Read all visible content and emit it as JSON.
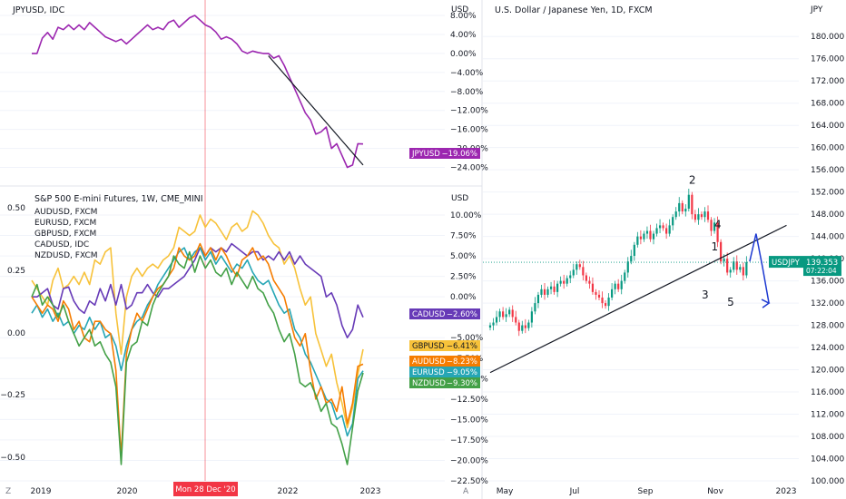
{
  "colors": {
    "jpy": "#9c27b0",
    "cad": "#673ab7",
    "gbp": "#f7c23a",
    "aud": "#f57c00",
    "eur": "#26a6b5",
    "nzd": "#43a047",
    "usdjpy_up": "#089981",
    "usdjpy_down": "#f23645",
    "crosshair": "#f23645",
    "arrow": "#1e3ad1",
    "badge_usdjpy": "#089981",
    "grid": "#f0f3fa"
  },
  "icons": {
    "left_corner": "tradingview-z-icon",
    "right_corner": "tradingview-a-icon"
  },
  "corner_left": "Z",
  "corner_right": "A",
  "crosshair_label": "Mon 28 Dec '20",
  "chart_data": [
    {
      "id": "jpyusd",
      "type": "line",
      "title": "JPYUSD, IDC",
      "unit_label": "USD",
      "y_ticks": [
        "8.00%",
        "4.00%",
        "0.00%",
        "−4.00%",
        "−8.00%",
        "−12.00%",
        "−16.00%",
        "−20.00%",
        "−24.00%"
      ],
      "ylim": [
        -26,
        8
      ],
      "series": [
        {
          "name": "JPYUSD",
          "last": "−19.06%",
          "values": [
            0,
            0,
            3.2,
            4.4,
            3.0,
            5.5,
            5.0,
            6.0,
            5.0,
            6.0,
            5.0,
            6.5,
            5.5,
            4.5,
            3.5,
            3.0,
            2.5,
            3.0,
            2.0,
            3.0,
            4.0,
            5.0,
            6.0,
            5.0,
            5.5,
            5.0,
            6.5,
            7.0,
            5.5,
            6.5,
            7.5,
            8.0,
            7.0,
            6.0,
            5.5,
            4.5,
            3.0,
            3.5,
            3.0,
            2.0,
            0.5,
            0,
            0.5,
            0.2,
            0,
            0,
            -1.0,
            -0.5,
            -2.5,
            -5.0,
            -7.5,
            -10.0,
            -12.5,
            -14.0,
            -17.0,
            -16.5,
            -15.5,
            -20.0,
            -19.0,
            -21.5,
            -24.0,
            -23.5,
            -19.0,
            -19.06
          ]
        }
      ],
      "trendline": {
        "from": [
          45,
          -0.5
        ],
        "to": [
          63,
          -23.5
        ]
      }
    },
    {
      "id": "fx-basket",
      "type": "line",
      "title": "S&P 500 E-mini Futures, 1W, CME_MINI",
      "unit_label": "USD",
      "x_ticks": [
        "2019",
        "2020",
        "2022",
        "2023"
      ],
      "left_y_ticks": [
        "0.50",
        "0.25",
        "0.00",
        "−0.25",
        "−0.50"
      ],
      "right_y_ticks": [
        "10.00%",
        "7.50%",
        "5.00%",
        "2.50%",
        "0.00%",
        "−5.00%",
        "−7.50%",
        "−10.00%",
        "−12.50%",
        "−15.00%",
        "−17.50%",
        "−20.00%",
        "−22.50%"
      ],
      "ylim": [
        -22.5,
        11
      ],
      "legend": [
        "AUDUSD, FXCM",
        "EURUSD, FXCM",
        "GBPUSD, FXCM",
        "CADUSD, IDC",
        "NZDUSD, FXCM"
      ],
      "series": [
        {
          "name": "CADUSD",
          "last": "−2.60%",
          "values": [
            0,
            0,
            0.5,
            1.0,
            -1.0,
            -1.5,
            1.0,
            1.2,
            -0.5,
            -1.5,
            -2.0,
            -0.5,
            -1.0,
            1.0,
            -0.5,
            1.5,
            -1.0,
            1.5,
            -1.5,
            -1.0,
            0.5,
            0.5,
            1.5,
            0.5,
            0,
            1.0,
            1.0,
            1.5,
            2.0,
            2.5,
            3.5,
            4.5,
            6.0,
            5.0,
            6.0,
            5.5,
            6.0,
            5.5,
            6.5,
            6.0,
            5.5,
            5.0,
            5.5,
            5.5,
            4.5,
            5.0,
            4.5,
            5.5,
            4.5,
            5.5,
            4.0,
            5.0,
            4.0,
            3.5,
            3.0,
            2.5,
            0,
            0.5,
            -1.0,
            -3.5,
            -5.0,
            -4.0,
            -1.0,
            -2.5
          ]
        },
        {
          "name": "GBPUSD",
          "last": "−6.41%",
          "values": [
            2.0,
            1.0,
            0,
            -1.0,
            2.0,
            3.5,
            1.0,
            1.5,
            2.5,
            1.5,
            3.0,
            1.5,
            4.5,
            4.0,
            5.5,
            6.0,
            -2.0,
            -7.0,
            0,
            2.5,
            3.5,
            2.5,
            3.5,
            4.0,
            3.5,
            4.5,
            5.0,
            6.0,
            8.5,
            8.0,
            7.5,
            8.0,
            10.0,
            8.5,
            9.5,
            9.0,
            8.0,
            7.0,
            8.5,
            9.0,
            8.0,
            8.5,
            10.5,
            10.0,
            9.0,
            7.5,
            6.5,
            6.0,
            4.0,
            5.0,
            3.5,
            1.0,
            -1.0,
            0,
            -4.5,
            -6.5,
            -8.5,
            -7.0,
            -10.5,
            -13.0,
            -16.0,
            -13.5,
            -9.5,
            -6.41
          ]
        },
        {
          "name": "AUDUSD",
          "last": "−8.23%",
          "values": [
            0,
            -1.0,
            -2.0,
            -1.0,
            -1.5,
            -3.0,
            -0.5,
            -1.5,
            -4.0,
            -3.0,
            -5.0,
            -5.5,
            -3.0,
            -3.0,
            -4.0,
            -4.5,
            -9.0,
            -19.5,
            -7.0,
            -4.0,
            -2.0,
            -3.0,
            -1.5,
            0,
            1.0,
            1.5,
            2.5,
            3.5,
            6.0,
            5.0,
            4.5,
            5.0,
            6.5,
            5.0,
            6.0,
            4.5,
            6.0,
            5.0,
            3.5,
            2.5,
            4.5,
            5.0,
            6.0,
            4.5,
            5.0,
            4.0,
            2.0,
            1.0,
            0,
            -2.5,
            -5.0,
            -6.0,
            -4.5,
            -9.0,
            -12.5,
            -11.0,
            -13.0,
            -12.5,
            -14.0,
            -11.0,
            -15.5,
            -13.0,
            -8.5,
            -8.23
          ]
        },
        {
          "name": "EURUSD",
          "last": "−9.05%",
          "values": [
            -2.0,
            -1.0,
            -2.5,
            -1.5,
            -3.0,
            -2.0,
            -3.5,
            -3.0,
            -4.5,
            -3.5,
            -4.0,
            -2.5,
            -4.0,
            -3.0,
            -5.0,
            -4.5,
            -6.0,
            -9.0,
            -6.0,
            -4.0,
            -3.0,
            -2.5,
            -1.0,
            0,
            1.5,
            2.5,
            3.5,
            4.5,
            5.5,
            6.0,
            4.5,
            5.5,
            6.0,
            4.5,
            5.5,
            4.0,
            5.0,
            4.0,
            3.0,
            4.0,
            3.5,
            4.5,
            3.0,
            2.0,
            1.5,
            2.0,
            0.5,
            -1.0,
            -2.0,
            -1.5,
            -4.0,
            -5.0,
            -7.0,
            -8.0,
            -9.5,
            -11.0,
            -12.5,
            -13.0,
            -15.0,
            -14.5,
            -17.0,
            -15.5,
            -10.0,
            -9.05
          ]
        },
        {
          "name": "NZDUSD",
          "last": "−9.30%",
          "values": [
            0,
            1.5,
            -1.0,
            0,
            -1.0,
            -2.5,
            -1.0,
            -3.0,
            -4.5,
            -6.0,
            -5.0,
            -4.0,
            -6.0,
            -5.5,
            -7.0,
            -8.0,
            -11.0,
            -20.5,
            -8.0,
            -6.0,
            -5.5,
            -3.0,
            -3.5,
            -1.0,
            0.5,
            1.5,
            2.5,
            5.0,
            4.0,
            3.5,
            5.5,
            3.0,
            5.0,
            3.5,
            4.5,
            3.0,
            2.5,
            3.5,
            1.5,
            3.0,
            2.0,
            1.0,
            2.5,
            1.0,
            0.5,
            -1.0,
            -2.0,
            -4.0,
            -5.5,
            -4.5,
            -7.0,
            -10.5,
            -11.0,
            -10.5,
            -12.0,
            -14.0,
            -13.0,
            -15.5,
            -16.0,
            -18.0,
            -20.5,
            -16.0,
            -11.5,
            -9.3
          ]
        }
      ]
    },
    {
      "id": "usdjpy",
      "type": "candlestick",
      "title": "U.S. Dollar / Japanese Yen, 1D, FXCM",
      "unit_label": "JPY",
      "x_ticks": [
        "May",
        "Jul",
        "Sep",
        "Nov",
        "2023"
      ],
      "y_ticks": [
        "180.000",
        "176.000",
        "172.000",
        "168.000",
        "164.000",
        "160.000",
        "156.000",
        "152.000",
        "148.000",
        "144.000",
        "140.000",
        "136.000",
        "132.000",
        "128.000",
        "124.000",
        "120.000",
        "116.000",
        "112.000",
        "108.000",
        "104.000",
        "100.000"
      ],
      "ylim": [
        100,
        182
      ],
      "last_price": "139.353",
      "countdown": "07:22:04",
      "series_name": "USDJPY",
      "closes": [
        128.0,
        128.5,
        129.5,
        130.5,
        129.5,
        130.0,
        130.8,
        129.5,
        128.5,
        127.0,
        128.0,
        127.5,
        128.5,
        130.5,
        132.0,
        133.5,
        134.5,
        133.5,
        134.5,
        135.0,
        134.0,
        135.5,
        136.0,
        135.5,
        136.5,
        137.0,
        138.0,
        139.0,
        138.5,
        137.0,
        136.0,
        135.5,
        134.0,
        133.5,
        133.0,
        132.0,
        131.5,
        133.0,
        134.5,
        135.5,
        134.5,
        136.0,
        137.5,
        139.5,
        140.5,
        142.5,
        144.0,
        143.5,
        144.5,
        145.0,
        143.5,
        144.5,
        145.5,
        146.0,
        145.5,
        144.5,
        146.0,
        147.5,
        148.5,
        150.0,
        148.5,
        149.0,
        151.5,
        148.0,
        147.0,
        148.0,
        147.5,
        148.5,
        147.0,
        145.0,
        146.5,
        143.0,
        139.5,
        140.0,
        137.5,
        138.0,
        139.5,
        138.0,
        138.5,
        137.0,
        139.353
      ],
      "trendline": {
        "from": [
          0,
          119.5
        ],
        "to": [
          84,
          146
        ]
      },
      "labels": [
        "1",
        "2",
        "3",
        "4",
        "5"
      ],
      "forecast": [
        [
          81,
          139.5
        ],
        [
          83,
          144.5
        ],
        [
          85,
          138.5
        ],
        [
          87,
          132.0
        ]
      ]
    }
  ]
}
